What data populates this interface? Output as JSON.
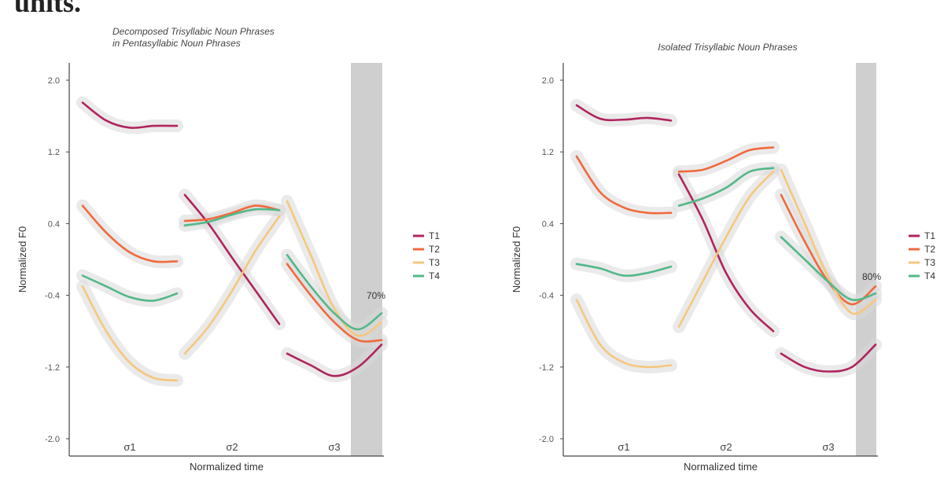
{
  "page_heading": "units.",
  "chart_data": [
    {
      "type": "line",
      "title_lines": [
        "Decomposed Trisyllabic Noun Phrases",
        "in Pentasyllabic Noun Phrases"
      ],
      "xlabel": "Normalized time",
      "ylabel": "Normalized F0",
      "ylim": [
        -2.0,
        2.0
      ],
      "yticks": [
        "2.0",
        "1.2",
        "0.4",
        "-0.4",
        "-1.2",
        "-2.0"
      ],
      "syllables": [
        "σ1",
        "σ2",
        "σ3"
      ],
      "highlight_label": "70%",
      "legend": [
        "T1",
        "T2",
        "T3",
        "T4"
      ],
      "series": [
        {
          "name": "T1",
          "color": "#b0245e",
          "segments": [
            [
              [
                0,
                1.75
              ],
              [
                0.25,
                1.55
              ],
              [
                0.5,
                1.47
              ],
              [
                0.75,
                1.49
              ],
              [
                1,
                1.49
              ]
            ],
            [
              [
                0,
                0.72
              ],
              [
                0.25,
                0.4
              ],
              [
                0.5,
                0.02
              ],
              [
                0.75,
                -0.35
              ],
              [
                1,
                -0.72
              ]
            ],
            [
              [
                0,
                -1.05
              ],
              [
                0.25,
                -1.18
              ],
              [
                0.5,
                -1.3
              ],
              [
                0.75,
                -1.2
              ],
              [
                1,
                -0.95
              ]
            ]
          ]
        },
        {
          "name": "T2",
          "color": "#f06a3c",
          "segments": [
            [
              [
                0,
                0.6
              ],
              [
                0.25,
                0.3
              ],
              [
                0.5,
                0.08
              ],
              [
                0.75,
                -0.02
              ],
              [
                1,
                -0.02
              ]
            ],
            [
              [
                0,
                0.43
              ],
              [
                0.25,
                0.45
              ],
              [
                0.5,
                0.52
              ],
              [
                0.75,
                0.6
              ],
              [
                1,
                0.55
              ]
            ],
            [
              [
                0,
                -0.05
              ],
              [
                0.25,
                -0.4
              ],
              [
                0.5,
                -0.7
              ],
              [
                0.75,
                -0.9
              ],
              [
                1,
                -0.9
              ]
            ]
          ]
        },
        {
          "name": "T3",
          "color": "#f6c77c",
          "segments": [
            [
              [
                0,
                -0.3
              ],
              [
                0.25,
                -0.8
              ],
              [
                0.5,
                -1.15
              ],
              [
                0.75,
                -1.32
              ],
              [
                1,
                -1.35
              ]
            ],
            [
              [
                0,
                -1.05
              ],
              [
                0.25,
                -0.75
              ],
              [
                0.5,
                -0.35
              ],
              [
                0.75,
                0.1
              ],
              [
                1,
                0.48
              ]
            ],
            [
              [
                0,
                0.65
              ],
              [
                0.25,
                0.05
              ],
              [
                0.5,
                -0.55
              ],
              [
                0.75,
                -0.85
              ],
              [
                1,
                -0.7
              ]
            ]
          ]
        },
        {
          "name": "T4",
          "color": "#52b889",
          "segments": [
            [
              [
                0,
                -0.18
              ],
              [
                0.25,
                -0.3
              ],
              [
                0.5,
                -0.42
              ],
              [
                0.75,
                -0.46
              ],
              [
                1,
                -0.38
              ]
            ],
            [
              [
                0,
                0.38
              ],
              [
                0.25,
                0.42
              ],
              [
                0.5,
                0.5
              ],
              [
                0.75,
                0.56
              ],
              [
                1,
                0.55
              ]
            ],
            [
              [
                0,
                0.05
              ],
              [
                0.25,
                -0.3
              ],
              [
                0.5,
                -0.6
              ],
              [
                0.75,
                -0.78
              ],
              [
                1,
                -0.6
              ]
            ]
          ]
        }
      ]
    },
    {
      "type": "line",
      "title_lines": [
        "Isolated Trisyllabic Noun Phrases"
      ],
      "xlabel": "Normalized time",
      "ylabel": "Normalized F0",
      "ylim": [
        -2.0,
        2.0
      ],
      "yticks": [
        "2.0",
        "1.2",
        "0.4",
        "-0.4",
        "-1.2",
        "-2.0"
      ],
      "syllables": [
        "σ1",
        "σ2",
        "σ3"
      ],
      "highlight_label": "80%",
      "legend": [
        "T1",
        "T2",
        "T3",
        "T4"
      ],
      "series": [
        {
          "name": "T1",
          "color": "#b0245e",
          "segments": [
            [
              [
                0,
                1.72
              ],
              [
                0.25,
                1.57
              ],
              [
                0.5,
                1.56
              ],
              [
                0.75,
                1.58
              ],
              [
                1,
                1.55
              ]
            ],
            [
              [
                0,
                0.95
              ],
              [
                0.25,
                0.45
              ],
              [
                0.5,
                -0.15
              ],
              [
                0.75,
                -0.55
              ],
              [
                1,
                -0.8
              ]
            ],
            [
              [
                0,
                -1.05
              ],
              [
                0.25,
                -1.2
              ],
              [
                0.5,
                -1.25
              ],
              [
                0.75,
                -1.2
              ],
              [
                1,
                -0.95
              ]
            ]
          ]
        },
        {
          "name": "T2",
          "color": "#f06a3c",
          "segments": [
            [
              [
                0,
                1.15
              ],
              [
                0.25,
                0.75
              ],
              [
                0.5,
                0.58
              ],
              [
                0.75,
                0.52
              ],
              [
                1,
                0.52
              ]
            ],
            [
              [
                0,
                0.98
              ],
              [
                0.25,
                1.0
              ],
              [
                0.5,
                1.1
              ],
              [
                0.75,
                1.22
              ],
              [
                1,
                1.25
              ]
            ],
            [
              [
                0,
                0.72
              ],
              [
                0.25,
                0.2
              ],
              [
                0.5,
                -0.25
              ],
              [
                0.75,
                -0.5
              ],
              [
                1,
                -0.3
              ]
            ]
          ]
        },
        {
          "name": "T3",
          "color": "#f6c77c",
          "segments": [
            [
              [
                0,
                -0.45
              ],
              [
                0.25,
                -0.95
              ],
              [
                0.5,
                -1.15
              ],
              [
                0.75,
                -1.2
              ],
              [
                1,
                -1.18
              ]
            ],
            [
              [
                0,
                -0.75
              ],
              [
                0.25,
                -0.25
              ],
              [
                0.5,
                0.25
              ],
              [
                0.75,
                0.7
              ],
              [
                1,
                0.98
              ]
            ],
            [
              [
                0,
                1.0
              ],
              [
                0.25,
                0.4
              ],
              [
                0.5,
                -0.2
              ],
              [
                0.75,
                -0.6
              ],
              [
                1,
                -0.45
              ]
            ]
          ]
        },
        {
          "name": "T4",
          "color": "#52b889",
          "segments": [
            [
              [
                0,
                -0.05
              ],
              [
                0.25,
                -0.1
              ],
              [
                0.5,
                -0.18
              ],
              [
                0.75,
                -0.15
              ],
              [
                1,
                -0.08
              ]
            ],
            [
              [
                0,
                0.6
              ],
              [
                0.25,
                0.68
              ],
              [
                0.5,
                0.8
              ],
              [
                0.75,
                0.98
              ],
              [
                1,
                1.02
              ]
            ],
            [
              [
                0,
                0.25
              ],
              [
                0.25,
                0.0
              ],
              [
                0.5,
                -0.25
              ],
              [
                0.75,
                -0.45
              ],
              [
                1,
                -0.38
              ]
            ]
          ]
        }
      ]
    }
  ]
}
